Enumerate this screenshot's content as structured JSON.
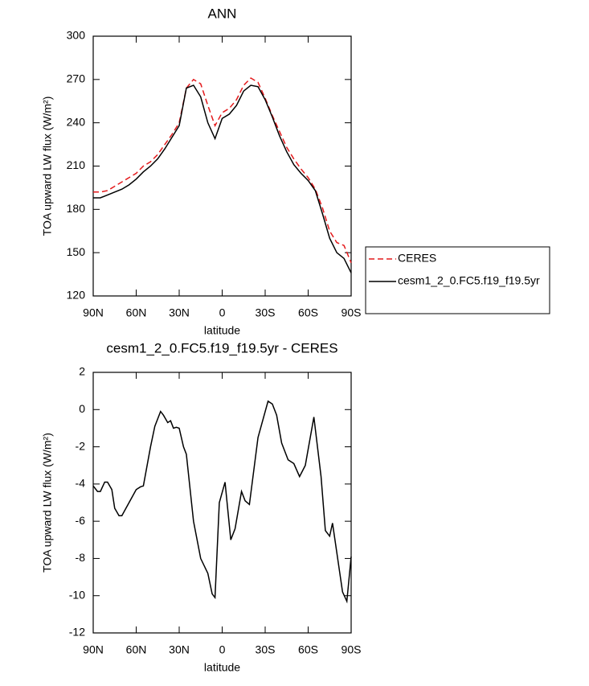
{
  "chart_data": [
    {
      "type": "line",
      "title": "ANN",
      "xlabel": "latitude",
      "ylabel": "TOA upward LW flux (W/m²)",
      "x": [
        90,
        85,
        80,
        75,
        70,
        65,
        60,
        55,
        50,
        45,
        40,
        35,
        30,
        25,
        20,
        15,
        10,
        5,
        0,
        -5,
        -10,
        -15,
        -20,
        -25,
        -30,
        -35,
        -40,
        -45,
        -50,
        -55,
        -60,
        -65,
        -70,
        -75,
        -80,
        -85,
        -90
      ],
      "series": [
        {
          "name": "CERES",
          "color": "#e41a1c",
          "dashed": true,
          "values": [
            192,
            192,
            193,
            196,
            199,
            202,
            205,
            210,
            213,
            218,
            225,
            232,
            240,
            264,
            270,
            267,
            252,
            238,
            247,
            250,
            256,
            266,
            271,
            268,
            257,
            245,
            234,
            223,
            215,
            208,
            202,
            194,
            181,
            165,
            157,
            155,
            143
          ]
        },
        {
          "name": "cesm1_2_0.FC5.f19_f19.5yr",
          "color": "#000000",
          "dashed": false,
          "values": [
            188,
            188,
            190,
            192,
            194,
            197,
            201,
            206,
            210,
            215,
            222,
            230,
            238,
            264,
            266,
            258,
            240,
            229,
            243,
            246,
            252,
            262,
            266,
            265,
            256,
            244,
            231,
            220,
            211,
            205,
            200,
            193,
            177,
            160,
            150,
            146,
            136
          ]
        }
      ],
      "xlim": [
        90,
        -90
      ],
      "xticks": [
        {
          "value": 90,
          "label": "90N"
        },
        {
          "value": 60,
          "label": "60N"
        },
        {
          "value": 30,
          "label": "30N"
        },
        0,
        {
          "value": -30,
          "label": "30S"
        },
        {
          "value": -60,
          "label": "60S"
        },
        {
          "value": -90,
          "label": "90S"
        }
      ],
      "ylim": [
        120,
        300
      ],
      "yticks": [
        120,
        150,
        180,
        210,
        240,
        270,
        300
      ],
      "legend": "right"
    },
    {
      "type": "line",
      "title": "cesm1_2_0.FC5.f19_f19.5yr - CERES",
      "xlabel": "latitude",
      "ylabel": "TOA upward LW flux (W/m²)",
      "x": [
        90,
        87,
        85,
        82,
        80,
        77,
        75,
        72,
        70,
        65,
        60,
        57,
        55,
        50,
        47,
        43,
        41,
        38,
        36,
        34,
        32,
        30,
        27,
        25,
        20,
        15,
        10,
        7,
        5,
        2,
        -2,
        -6,
        -9,
        -13.5,
        -16,
        -19,
        -25,
        -32,
        -35,
        -38,
        -41.5,
        -46,
        -50,
        -54,
        -58,
        -64,
        -69,
        -72,
        -75,
        -77,
        -84,
        -87,
        -90
      ],
      "values": [
        -4.1,
        -4.4,
        -4.4,
        -3.9,
        -3.9,
        -4.3,
        -5.3,
        -5.7,
        -5.7,
        -5.0,
        -4.3,
        -4.15,
        -4.1,
        -2.0,
        -0.9,
        -0.1,
        -0.3,
        -0.7,
        -0.6,
        -1.0,
        -0.95,
        -1.0,
        -2.0,
        -2.4,
        -6.0,
        -8.0,
        -8.8,
        -9.9,
        -10.1,
        -5.0,
        -3.9,
        -7.0,
        -6.4,
        -4.4,
        -4.9,
        -5.1,
        -1.5,
        0.45,
        0.3,
        -0.3,
        -1.8,
        -2.7,
        -2.9,
        -3.6,
        -3.0,
        -0.4,
        -3.6,
        -6.5,
        -6.8,
        -6.1,
        -9.8,
        -10.3,
        -7.9
      ],
      "color": "#000000",
      "xlim": [
        90,
        -90
      ],
      "xticks": [
        {
          "value": 90,
          "label": "90N"
        },
        {
          "value": 60,
          "label": "60N"
        },
        {
          "value": 30,
          "label": "30N"
        },
        0,
        {
          "value": -30,
          "label": "30S"
        },
        {
          "value": -60,
          "label": "60S"
        },
        {
          "value": -90,
          "label": "90S"
        }
      ],
      "ylim": [
        -12,
        2
      ],
      "yticks": [
        -12,
        -10,
        -8,
        -6,
        -4,
        -2,
        0,
        2
      ]
    }
  ]
}
